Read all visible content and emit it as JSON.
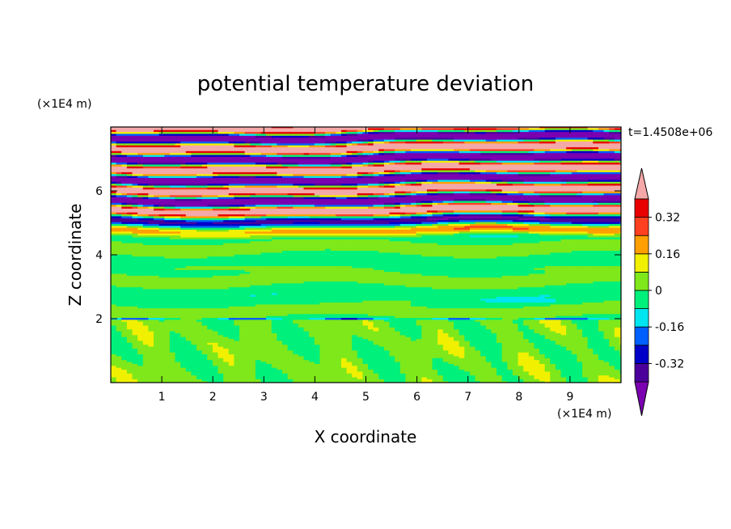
{
  "chart_data": {
    "type": "heatmap",
    "title": "potential temperature deviation",
    "xlabel": "X coordinate",
    "ylabel": "Z coordinate",
    "x_unit": "(×1E4 m)",
    "y_unit": "(×1E4 m)",
    "time_label": "t=1.4508e+06",
    "xlim": [
      0,
      10
    ],
    "ylim": [
      0,
      8
    ],
    "x_ticks": [
      "1",
      "2",
      "3",
      "4",
      "5",
      "6",
      "7",
      "8",
      "9"
    ],
    "y_ticks": [
      "2",
      "4",
      "6"
    ],
    "colorbar": {
      "tick_labels": [
        "0.32",
        "0.16",
        "0",
        "-0.16",
        "-0.32"
      ],
      "tick_values": [
        0.32,
        0.16,
        0,
        -0.16,
        -0.32
      ],
      "levels": [
        -0.4,
        -0.32,
        -0.24,
        -0.16,
        -0.08,
        0,
        0.08,
        0.16,
        0.24,
        0.32,
        0.4
      ],
      "colors": [
        "#7a00b0",
        "#4b009c",
        "#0000c8",
        "#0060ff",
        "#00e6f0",
        "#00f07c",
        "#7ee81a",
        "#f0f000",
        "#ffa000",
        "#ff4020",
        "#e80000",
        "#f4a8a8"
      ]
    },
    "grid": false,
    "legend": "right"
  }
}
